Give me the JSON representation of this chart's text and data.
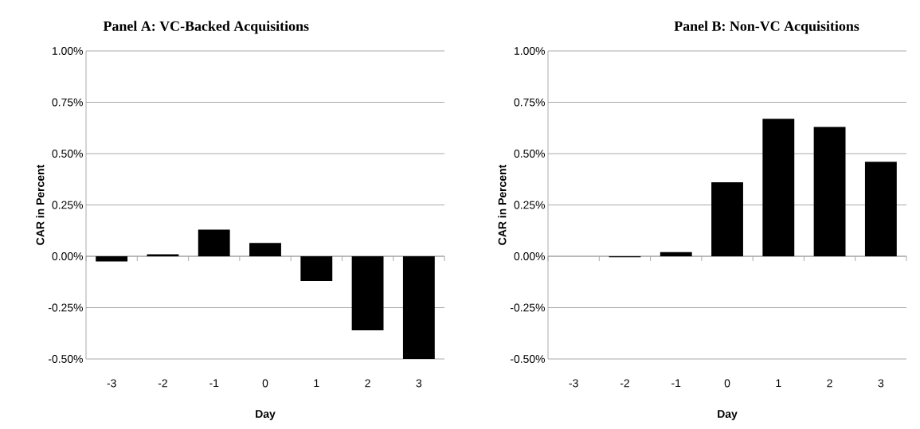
{
  "chart_data": [
    {
      "type": "bar",
      "title": "Panel A: VC-Backed Acquisitions",
      "xlabel": "Day",
      "ylabel": "CAR in Percent",
      "categories": [
        "-3",
        "-2",
        "-1",
        "0",
        "1",
        "2",
        "3"
      ],
      "values": [
        -0.025,
        0.01,
        0.13,
        0.065,
        -0.12,
        -0.36,
        -0.5
      ],
      "color": "#000000",
      "ylim": [
        -0.5,
        1.0
      ],
      "yticks": [
        {
          "value": -0.5,
          "label": "-0.50%"
        },
        {
          "value": -0.25,
          "label": "-0.25%"
        },
        {
          "value": 0,
          "label": "0.00%"
        },
        {
          "value": 0.25,
          "label": "0.25%"
        },
        {
          "value": 0.5,
          "label": "0.50%"
        },
        {
          "value": 0.75,
          "label": "0.75%"
        },
        {
          "value": 1.0,
          "label": "1.00%"
        }
      ],
      "grid": "y"
    },
    {
      "type": "bar",
      "title": "Panel B: Non-VC Acquisitions",
      "xlabel": "Day",
      "ylabel": "CAR in Percent",
      "categories": [
        "-3",
        "-2",
        "-1",
        "0",
        "1",
        "2",
        "3"
      ],
      "values": [
        0,
        -0.005,
        0.02,
        0.36,
        0.67,
        0.63,
        0.46
      ],
      "color": "#000000",
      "ylim": [
        -0.5,
        1.0
      ],
      "yticks": [
        {
          "value": -0.5,
          "label": "-0.50%"
        },
        {
          "value": -0.25,
          "label": "-0.25%"
        },
        {
          "value": 0,
          "label": "0.00%"
        },
        {
          "value": 0.25,
          "label": "0.25%"
        },
        {
          "value": 0.5,
          "label": "0.50%"
        },
        {
          "value": 0.75,
          "label": "0.75%"
        },
        {
          "value": 1.0,
          "label": "1.00%"
        }
      ],
      "grid": "y"
    }
  ]
}
